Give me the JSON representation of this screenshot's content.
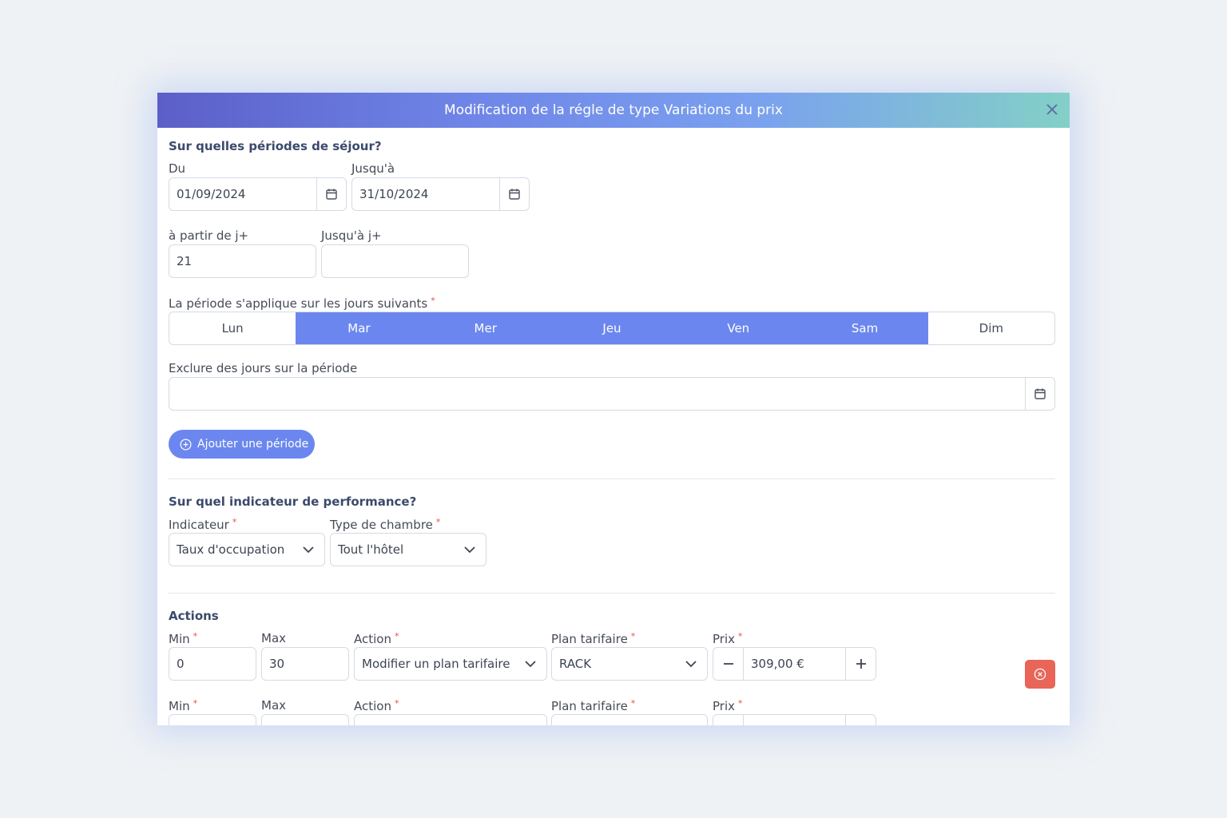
{
  "modal": {
    "title": "Modification de la régle de type Variations du prix"
  },
  "periods": {
    "title": "Sur quelles périodes de séjour?",
    "from_label": "Du",
    "from_value": "01/09/2024",
    "to_label": "Jusqu'à",
    "to_value": "31/10/2024",
    "from_day_label": "à partir de j+",
    "from_day_value": "21",
    "to_day_label": "Jusqu'à j+",
    "to_day_value": "",
    "days_label": "La période s'applique sur les jours suivants",
    "days": [
      {
        "label": "Lun",
        "selected": false
      },
      {
        "label": "Mar",
        "selected": true
      },
      {
        "label": "Mer",
        "selected": true
      },
      {
        "label": "Jeu",
        "selected": true
      },
      {
        "label": "Ven",
        "selected": true
      },
      {
        "label": "Sam",
        "selected": true
      },
      {
        "label": "Dim",
        "selected": false
      }
    ],
    "exclude_label": "Exclure des jours sur la période",
    "exclude_value": "",
    "add_button": "Ajouter une période"
  },
  "indicator": {
    "title": "Sur quel indicateur de performance?",
    "indicator_label": "Indicateur",
    "indicator_value": "Taux d'occupation",
    "room_label": "Type de chambre",
    "room_value": "Tout l'hôtel"
  },
  "actions": {
    "title": "Actions",
    "rows": [
      {
        "min_label": "Min",
        "min_value": "0",
        "max_label": "Max",
        "max_value": "30",
        "action_label": "Action",
        "action_value": "Modifier un plan tarifaire",
        "plan_label": "Plan tarifaire",
        "plan_value": "RACK",
        "price_label": "Prix",
        "price_value": "309,00 €"
      },
      {
        "min_label": "Min",
        "max_label": "Max",
        "action_label": "Action",
        "plan_label": "Plan tarifaire",
        "price_label": "Prix"
      }
    ]
  },
  "colors": {
    "accent": "#6b87ef",
    "danger": "#e86558",
    "required": "#e0524a"
  }
}
